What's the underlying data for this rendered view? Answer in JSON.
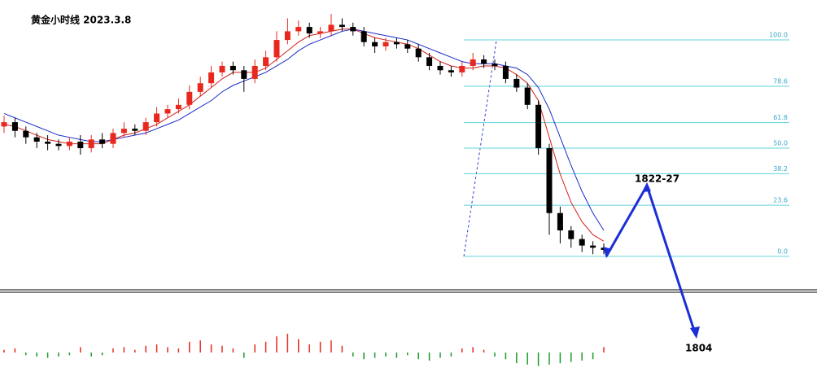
{
  "chart_data": {
    "type": "candlestick",
    "title": "黄金小时线 2023.3.8",
    "up_color": "#e8281f",
    "down_color": "#000000",
    "ylim": [
      -13.2,
      117.7
    ],
    "open": [
      60,
      62,
      58,
      55,
      53,
      52,
      51,
      53,
      50,
      54,
      52,
      57,
      59,
      58,
      62,
      66,
      68,
      70,
      76,
      80,
      85,
      88,
      86,
      82,
      88,
      92,
      100,
      104,
      106,
      103,
      104,
      107,
      106,
      104,
      99,
      97,
      99,
      98,
      96,
      92,
      88,
      86,
      85,
      88,
      91,
      89,
      88,
      82,
      78,
      70,
      50,
      20,
      12,
      8,
      5,
      4
    ],
    "close": [
      62,
      58,
      55,
      53,
      52,
      51,
      53,
      50,
      54,
      52,
      57,
      59,
      58,
      62,
      66,
      68,
      70,
      76,
      80,
      85,
      88,
      86,
      82,
      88,
      92,
      100,
      104,
      106,
      103,
      104,
      107,
      106,
      104,
      99,
      97,
      99,
      98,
      96,
      92,
      88,
      86,
      85,
      88,
      91,
      89,
      88,
      82,
      78,
      70,
      50,
      20,
      12,
      8,
      5,
      4,
      3
    ],
    "high": [
      65,
      64,
      60,
      57,
      56,
      54,
      55,
      56,
      56,
      57,
      59,
      62,
      61,
      64,
      69,
      70,
      73,
      79,
      83,
      88,
      90,
      90,
      88,
      91,
      95,
      104,
      110,
      109,
      108,
      106,
      112,
      110,
      108,
      106,
      101,
      101,
      101,
      100,
      98,
      94,
      90,
      88,
      90,
      94,
      93,
      91,
      90,
      84,
      80,
      72,
      52,
      23,
      14,
      10,
      7,
      6
    ],
    "low": [
      57,
      55,
      52,
      50,
      49,
      49,
      49,
      47,
      48,
      50,
      50,
      55,
      56,
      56,
      60,
      64,
      66,
      68,
      74,
      78,
      83,
      84,
      76,
      80,
      86,
      90,
      98,
      102,
      101,
      101,
      102,
      104,
      102,
      97,
      94,
      95,
      96,
      94,
      90,
      86,
      84,
      83,
      83,
      86,
      87,
      86,
      80,
      76,
      68,
      47,
      10,
      6,
      4,
      2,
      1,
      1
    ],
    "ma_fast": {
      "color": "#d0201a",
      "values": [
        61,
        60,
        58,
        56,
        54,
        53,
        52,
        52,
        52,
        52,
        54,
        56,
        57,
        59,
        61,
        64,
        67,
        70,
        74,
        78,
        82,
        85,
        85,
        85,
        87,
        91,
        95,
        99,
        102,
        103,
        104,
        105,
        105,
        103,
        101,
        100,
        99,
        98,
        96,
        93,
        90,
        88,
        87,
        87,
        88,
        88,
        87,
        84,
        80,
        72,
        55,
        38,
        25,
        16,
        10,
        7
      ]
    },
    "ma_slow": {
      "color": "#1a2bc8",
      "values": [
        66,
        64,
        62,
        60,
        58,
        56,
        55,
        54,
        53,
        53,
        54,
        55,
        56,
        57,
        59,
        61,
        63,
        66,
        69,
        72,
        76,
        79,
        81,
        83,
        85,
        88,
        91,
        95,
        98,
        100,
        102,
        104,
        105,
        104,
        103,
        102,
        101,
        100,
        98,
        96,
        94,
        92,
        90,
        89,
        89,
        89,
        88,
        87,
        84,
        78,
        68,
        55,
        42,
        30,
        20,
        12
      ]
    },
    "fib_color": "#5fd3dc",
    "fib_levels": [
      {
        "value": 100,
        "label": "100.0"
      },
      {
        "value": 78.6,
        "label": "78.6"
      },
      {
        "value": 61.8,
        "label": "61.8"
      },
      {
        "value": 50,
        "label": "50.0"
      },
      {
        "value": 38.2,
        "label": "38.2"
      },
      {
        "value": 23.6,
        "label": "23.6"
      },
      {
        "value": 0,
        "label": "0.0"
      }
    ],
    "annotations": [
      "1822-27",
      "1804"
    ],
    "histogram": {
      "ylim": [
        -20,
        20
      ],
      "positive_color": "#e8281f",
      "negative_color": "#1a9a2a",
      "values": [
        2,
        3,
        -2,
        -3,
        -4,
        -3,
        -2,
        4,
        -3,
        -2,
        3,
        4,
        2,
        5,
        6,
        4,
        3,
        8,
        9,
        6,
        5,
        3,
        -4,
        6,
        8,
        12,
        14,
        10,
        6,
        8,
        9,
        5,
        -3,
        -5,
        -4,
        -3,
        -4,
        -2,
        -5,
        -6,
        -4,
        -3,
        3,
        4,
        2,
        -3,
        -5,
        -8,
        -9,
        -10,
        -9,
        -8,
        -7,
        -6,
        -5,
        4
      ]
    }
  }
}
